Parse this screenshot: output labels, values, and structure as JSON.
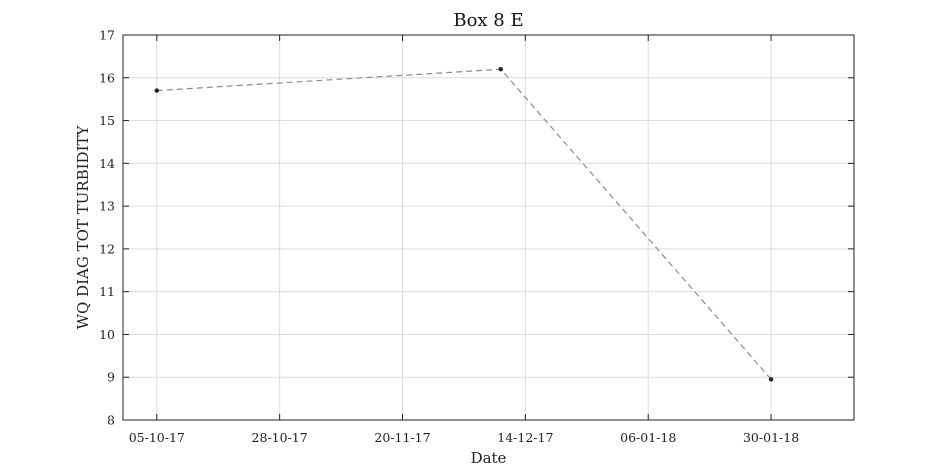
{
  "chart_data": {
    "type": "line",
    "title": "Box 8 E",
    "xlabel": "Date",
    "ylabel": "WQ DIAG TOT TURBIDITY",
    "ylim": [
      8,
      17
    ],
    "yticks": [
      8,
      9,
      10,
      11,
      12,
      13,
      14,
      15,
      16,
      17
    ],
    "xlim_days": [
      -5.5,
      113.5
    ],
    "xticks": [
      {
        "day": 0,
        "label": "05-10-17"
      },
      {
        "day": 20,
        "label": "28-10-17"
      },
      {
        "day": 40,
        "label": "20-11-17"
      },
      {
        "day": 60,
        "label": "14-12-17"
      },
      {
        "day": 80,
        "label": "06-01-18"
      },
      {
        "day": 100,
        "label": "30-01-18"
      }
    ],
    "grid": true,
    "series": [
      {
        "name": "WQ DIAG TOT TURBIDITY",
        "line_style": "dashed",
        "line_color": "#8c8c8c",
        "marker_color": "#222222",
        "points": [
          {
            "day": 0,
            "value": 15.7
          },
          {
            "day": 56,
            "value": 16.2
          },
          {
            "day": 100,
            "value": 8.95
          }
        ]
      }
    ]
  }
}
